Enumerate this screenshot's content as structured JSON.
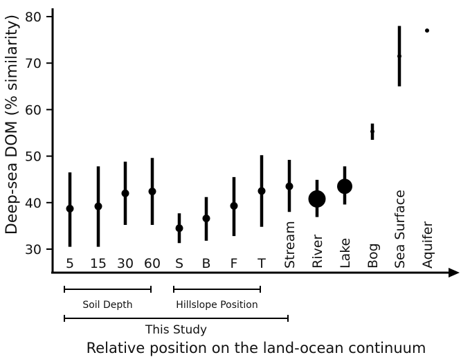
{
  "chart_data": {
    "type": "scatter",
    "ylabel": "Deep-sea DOM (% similarity)",
    "xlabel": "Relative position on the land-ocean continuum",
    "ylim": [
      28,
      80
    ],
    "yticks": [
      30,
      40,
      50,
      60,
      70,
      80
    ],
    "grid": false,
    "categories": [
      "5",
      "15",
      "30",
      "60",
      "S",
      "B",
      "F",
      "T",
      "Stream",
      "River",
      "Lake",
      "Bog",
      "Sea Surface",
      "Aquifer"
    ],
    "points": [
      {
        "category": "5",
        "value": 38.7,
        "low": 30.5,
        "high": 46.5
      },
      {
        "category": "15",
        "value": 39.2,
        "low": 30.5,
        "high": 47.8
      },
      {
        "category": "30",
        "value": 42.0,
        "low": 35.2,
        "high": 48.8
      },
      {
        "category": "60",
        "value": 42.4,
        "low": 35.2,
        "high": 49.6
      },
      {
        "category": "S",
        "value": 34.5,
        "low": 31.3,
        "high": 37.7
      },
      {
        "category": "B",
        "value": 36.6,
        "low": 31.8,
        "high": 41.2
      },
      {
        "category": "F",
        "value": 39.3,
        "low": 32.8,
        "high": 45.5
      },
      {
        "category": "T",
        "value": 42.5,
        "low": 34.8,
        "high": 50.2
      },
      {
        "category": "Stream",
        "value": 43.5,
        "low": 38.0,
        "high": 49.2
      },
      {
        "category": "River",
        "value": 40.8,
        "low": 36.9,
        "high": 44.9
      },
      {
        "category": "Lake",
        "value": 43.5,
        "low": 39.6,
        "high": 47.8
      },
      {
        "category": "Bog",
        "value": 55.3,
        "low": 53.5,
        "high": 57.0
      },
      {
        "category": "Sea Surface",
        "value": 71.5,
        "low": 65.0,
        "high": 78.0
      },
      {
        "category": "Aquifer",
        "value": 77.0,
        "low": 77.0,
        "high": 77.0
      }
    ],
    "point_size_levels": [
      2,
      2,
      2,
      2,
      2,
      2,
      2,
      2,
      2,
      5,
      4,
      1,
      1,
      1
    ],
    "groups": [
      {
        "label": "Soil Depth",
        "from": "5",
        "to": "60"
      },
      {
        "label": "Hillslope Position",
        "from": "S",
        "to": "T"
      },
      {
        "label": "This Study",
        "from": "5",
        "to": "Stream"
      }
    ]
  }
}
